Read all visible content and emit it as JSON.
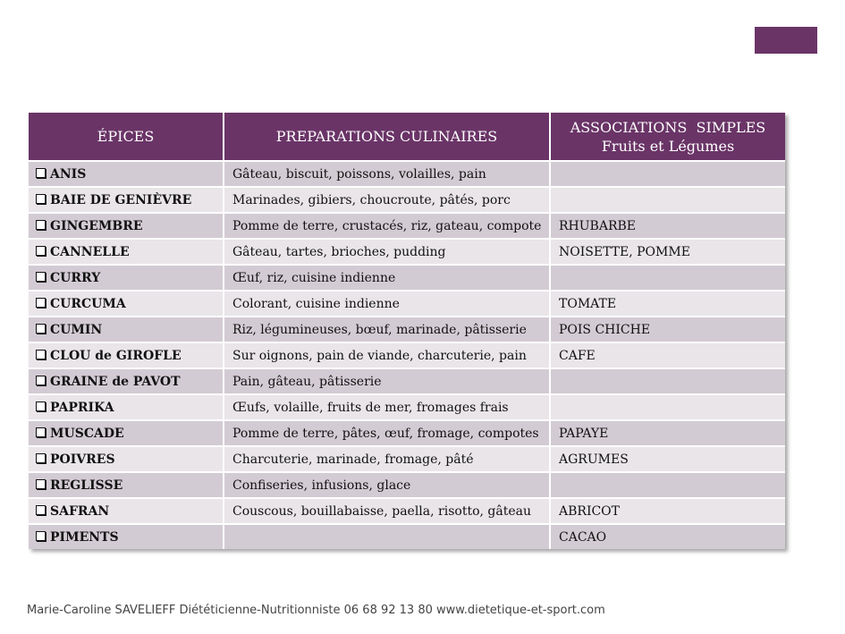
{
  "header": {
    "col1": "ÉPICES",
    "col2": "PREPARATIONS CULINAIRES",
    "col3_line1": "ASSOCIATIONS  SIMPLES",
    "col3_line2": "Fruits et Légumes"
  },
  "rows": [
    {
      "spice": "ANIS",
      "prep": "Gâteau, biscuit, poissons, volailles, pain",
      "assoc": ""
    },
    {
      "spice": "BAIE DE GENIÈVRE",
      "prep": "Marinades, gibiers, choucroute, pâtés, porc",
      "assoc": ""
    },
    {
      "spice": "GINGEMBRE",
      "prep": "Pomme de terre, crustacés, riz, gateau, compote",
      "assoc": "RHUBARBE"
    },
    {
      "spice": "CANNELLE",
      "prep": "Gâteau, tartes, brioches, pudding",
      "assoc": "NOISETTE, POMME"
    },
    {
      "spice": "CURRY",
      "prep": "Œuf, riz, cuisine indienne",
      "assoc": ""
    },
    {
      "spice": "CURCUMA",
      "prep": "Colorant, cuisine indienne",
      "assoc": "TOMATE"
    },
    {
      "spice": "CUMIN",
      "prep": "Riz, légumineuses, bœuf, marinade, pâtisserie",
      "assoc": "POIS CHICHE"
    },
    {
      "spice": "CLOU de GIROFLE",
      "prep": "Sur oignons, pain de viande, charcuterie, pain",
      "assoc": "CAFE"
    },
    {
      "spice": "GRAINE de PAVOT",
      "prep": "Pain, gâteau, pâtisserie",
      "assoc": ""
    },
    {
      "spice": "PAPRIKA",
      "prep": "Œufs, volaille, fruits de mer, fromages frais",
      "assoc": ""
    },
    {
      "spice": "MUSCADE",
      "prep": "Pomme de terre, pâtes, œuf, fromage, compotes",
      "assoc": "PAPAYE"
    },
    {
      "spice": "POIVRES",
      "prep": "Charcuterie, marinade, fromage, pâté",
      "assoc": "AGRUMES"
    },
    {
      "spice": "REGLISSE",
      "prep": "Confiseries, infusions, glace",
      "assoc": ""
    },
    {
      "spice": "SAFRAN",
      "prep": "Couscous, bouillabaisse, paella, risotto, gâteau",
      "assoc": "ABRICOT"
    },
    {
      "spice": "PIMENTS",
      "prep": "",
      "assoc": "CACAO"
    }
  ],
  "footer": "Marie-Caroline SAVELIEFF Diététicienne-Nutritionniste 06 68 92 13 80 www.dietetique-et-sport.com",
  "colors": {
    "header_bg": "#6a3467",
    "row_dark": "#d3cbd3",
    "row_light": "#e9e5e9"
  }
}
